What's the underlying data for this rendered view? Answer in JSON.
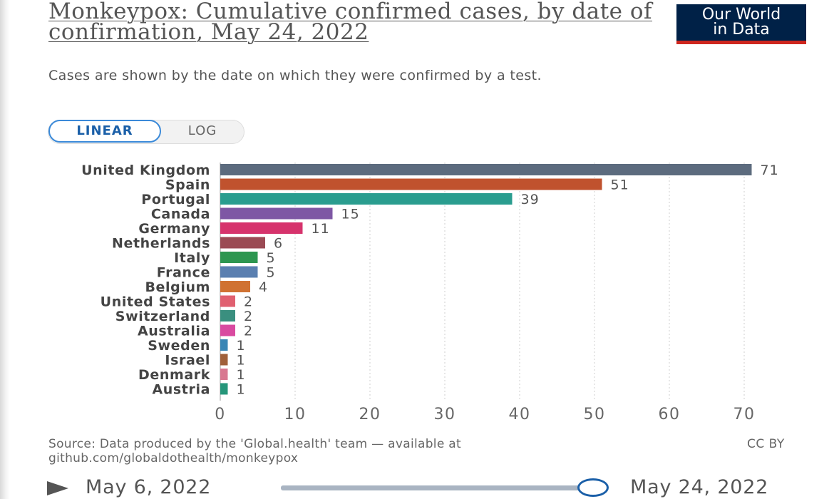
{
  "header": {
    "title": "Monkeypox: Cumulative confirmed cases, by date of confirmation, May 24, 2022",
    "subtitle": "Cases are shown by the date on which they were confirmed by a test.",
    "logo_line1": "Our World",
    "logo_line2": "in Data"
  },
  "scale_toggle": {
    "linear_label": "LINEAR",
    "log_label": "LOG",
    "selected": "LINEAR"
  },
  "colors": {
    "logo_bg": "#002147",
    "logo_stripe": "#ce261e",
    "accent": "#3b8ad9"
  },
  "chart_data": {
    "type": "bar",
    "orientation": "horizontal",
    "title": "Monkeypox: Cumulative confirmed cases, by date of confirmation, May 24, 2022",
    "xlim": [
      0,
      70
    ],
    "x_ticks": [
      0,
      10,
      20,
      30,
      40,
      50,
      60,
      70
    ],
    "grid": "vertical dotted",
    "categories": [
      "United Kingdom",
      "Spain",
      "Portugal",
      "Canada",
      "Germany",
      "Netherlands",
      "Italy",
      "France",
      "Belgium",
      "United States",
      "Switzerland",
      "Australia",
      "Sweden",
      "Israel",
      "Denmark",
      "Austria"
    ],
    "values": [
      71,
      51,
      39,
      15,
      11,
      6,
      5,
      5,
      4,
      2,
      2,
      2,
      1,
      1,
      1,
      1
    ],
    "bar_colors": [
      "#5c6b7e",
      "#c0522e",
      "#2a9d8f",
      "#7e57a4",
      "#d6336c",
      "#9b4a54",
      "#2d9650",
      "#5a7fb0",
      "#d07232",
      "#e06070",
      "#3a8f7f",
      "#d94aa0",
      "#3a86b5",
      "#a0603a",
      "#d87890",
      "#26967a"
    ]
  },
  "footer": {
    "source_line1": "Source: Data produced by the 'Global.health' team — available at",
    "source_line2": "github.com/globaldothealth/monkeypox",
    "license": "CC BY"
  },
  "timeline": {
    "start_date": "May 6, 2022",
    "end_date": "May 24, 2022"
  }
}
